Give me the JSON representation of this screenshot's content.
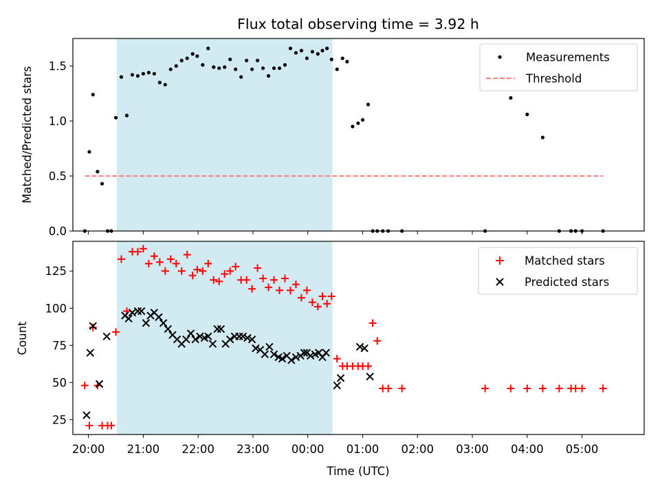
{
  "title": "Flux total observing time = 3.92 h",
  "chart_data": [
    {
      "type": "scatter",
      "panel": "top",
      "ylabel": "Matched/Predicted stars",
      "xlabel": "",
      "xlim": [
        "19:43",
        "06:08"
      ],
      "ylim": [
        0,
        1.75
      ],
      "yticks": [
        "0.0",
        "0.5",
        "1.0",
        "1.5"
      ],
      "grid": false,
      "legend_position": "upper right",
      "highlight_span": [
        "20:31",
        "00:27"
      ],
      "colors": {
        "measurements": "#000000",
        "threshold": "#ff7f7f",
        "span": "#add8e6"
      },
      "series": [
        {
          "name": "Measurements",
          "marker": "dot",
          "x": [
            "19:56",
            "20:01",
            "20:05",
            "20:10",
            "20:15",
            "20:21",
            "20:25",
            "20:30",
            "20:36",
            "20:42",
            "20:48",
            "20:54",
            "21:00",
            "21:06",
            "21:12",
            "21:18",
            "21:24",
            "21:30",
            "21:36",
            "21:42",
            "21:48",
            "21:54",
            "21:59",
            "22:05",
            "22:11",
            "22:17",
            "22:23",
            "22:29",
            "22:35",
            "22:41",
            "22:47",
            "22:53",
            "22:59",
            "23:05",
            "23:11",
            "23:17",
            "23:23",
            "23:29",
            "23:35",
            "23:41",
            "23:47",
            "23:53",
            "23:59",
            "00:05",
            "00:11",
            "00:16",
            "00:21",
            "00:26",
            "00:32",
            "00:38",
            "00:43",
            "00:49",
            "00:55",
            "01:00",
            "01:06",
            "01:11",
            "01:16",
            "01:22",
            "01:28",
            "01:43",
            "03:14",
            "03:42",
            "04:00",
            "04:17",
            "04:35",
            "04:48",
            "04:53",
            "05:00",
            "05:23"
          ],
          "y": [
            0,
            0.72,
            1.24,
            0.54,
            0.43,
            0,
            0,
            1.03,
            1.4,
            1.05,
            1.42,
            1.41,
            1.43,
            1.44,
            1.43,
            1.35,
            1.33,
            1.47,
            1.5,
            1.55,
            1.57,
            1.61,
            1.59,
            1.51,
            1.66,
            1.49,
            1.48,
            1.49,
            1.56,
            1.47,
            1.4,
            1.55,
            1.47,
            1.55,
            1.48,
            1.41,
            1.48,
            1.48,
            1.51,
            1.66,
            1.62,
            1.64,
            1.57,
            1.63,
            1.61,
            1.64,
            1.66,
            1.56,
            1.47,
            1.57,
            1.54,
            0.95,
            0.98,
            1.01,
            1.15,
            0,
            0,
            0,
            0,
            0,
            0,
            1.21,
            1.06,
            0.85,
            0,
            0,
            0,
            0,
            0
          ]
        },
        {
          "name": "Threshold",
          "style": "dashed",
          "x": [
            "19:56",
            "05:23"
          ],
          "y": [
            0.5,
            0.5
          ]
        }
      ]
    },
    {
      "type": "scatter",
      "panel": "bottom",
      "ylabel": "Count",
      "xlabel": "Time (UTC)",
      "xlim": [
        "19:43",
        "06:08"
      ],
      "ylim": [
        15,
        145
      ],
      "yticks": [
        "25",
        "50",
        "75",
        "100",
        "125"
      ],
      "xticks": [
        "20:00",
        "21:00",
        "22:00",
        "23:00",
        "00:00",
        "01:00",
        "02:00",
        "03:00",
        "04:00",
        "05:00"
      ],
      "grid": false,
      "legend_position": "upper right",
      "colors": {
        "matched": "#ff0000",
        "predicted": "#000000"
      },
      "series": [
        {
          "name": "Matched stars",
          "marker": "plus",
          "x": [
            "19:56",
            "20:01",
            "20:05",
            "20:10",
            "20:15",
            "20:21",
            "20:25",
            "20:30",
            "20:36",
            "20:42",
            "20:48",
            "20:54",
            "21:00",
            "21:06",
            "21:12",
            "21:18",
            "21:24",
            "21:30",
            "21:36",
            "21:42",
            "21:48",
            "21:54",
            "21:59",
            "22:05",
            "22:11",
            "22:17",
            "22:23",
            "22:29",
            "22:35",
            "22:41",
            "22:47",
            "22:53",
            "22:59",
            "23:05",
            "23:11",
            "23:17",
            "23:23",
            "23:29",
            "23:35",
            "23:41",
            "23:47",
            "23:53",
            "23:59",
            "00:05",
            "00:11",
            "00:16",
            "00:21",
            "00:26",
            "00:32",
            "00:38",
            "00:43",
            "00:49",
            "00:55",
            "01:00",
            "01:06",
            "01:11",
            "01:16",
            "01:22",
            "01:28",
            "01:43",
            "03:14",
            "03:42",
            "04:00",
            "04:17",
            "04:35",
            "04:48",
            "04:53",
            "05:00",
            "05:23"
          ],
          "y": [
            48,
            21,
            87,
            48,
            21,
            21,
            21,
            84,
            133,
            98,
            138,
            138,
            140,
            130,
            135,
            131,
            125,
            133,
            130,
            125,
            136,
            122,
            126,
            125,
            130,
            119,
            118,
            123,
            125,
            128,
            119,
            119,
            113,
            127,
            120,
            114,
            119,
            112,
            120,
            112,
            116,
            107,
            112,
            104,
            101,
            108,
            103,
            108,
            66,
            61,
            61,
            61,
            61,
            61,
            61,
            90,
            78,
            46,
            46,
            46,
            46,
            46,
            46,
            46,
            46,
            46,
            46,
            46,
            46
          ]
        },
        {
          "name": "Predicted stars",
          "marker": "x",
          "x": [
            "19:58",
            "20:02",
            "20:05",
            "20:12",
            "20:20",
            "20:40",
            "20:44",
            "20:48",
            "20:54",
            "20:58",
            "21:03",
            "21:08",
            "21:12",
            "21:17",
            "21:22",
            "21:27",
            "21:32",
            "21:37",
            "21:42",
            "21:47",
            "21:52",
            "21:57",
            "22:02",
            "22:07",
            "22:11",
            "22:16",
            "22:21",
            "22:25",
            "22:30",
            "22:35",
            "22:40",
            "22:45",
            "22:49",
            "22:54",
            "22:59",
            "23:03",
            "23:08",
            "23:13",
            "23:18",
            "23:23",
            "23:28",
            "23:32",
            "23:37",
            "23:42",
            "23:47",
            "23:52",
            "23:56",
            "23:59",
            "00:03",
            "00:08",
            "00:12",
            "00:16",
            "00:20",
            "00:32",
            "00:36",
            "00:57",
            "01:02",
            "01:08"
          ],
          "y": [
            28,
            70,
            88,
            49,
            81,
            95,
            93,
            97,
            98,
            98,
            90,
            95,
            97,
            94,
            90,
            86,
            82,
            79,
            76,
            79,
            83,
            79,
            81,
            80,
            81,
            76,
            86,
            86,
            76,
            79,
            81,
            81,
            81,
            80,
            79,
            73,
            72,
            69,
            74,
            69,
            67,
            66,
            68,
            65,
            67,
            68,
            70,
            70,
            68,
            69,
            70,
            67,
            70,
            48,
            53,
            74,
            73,
            54
          ]
        }
      ]
    }
  ]
}
